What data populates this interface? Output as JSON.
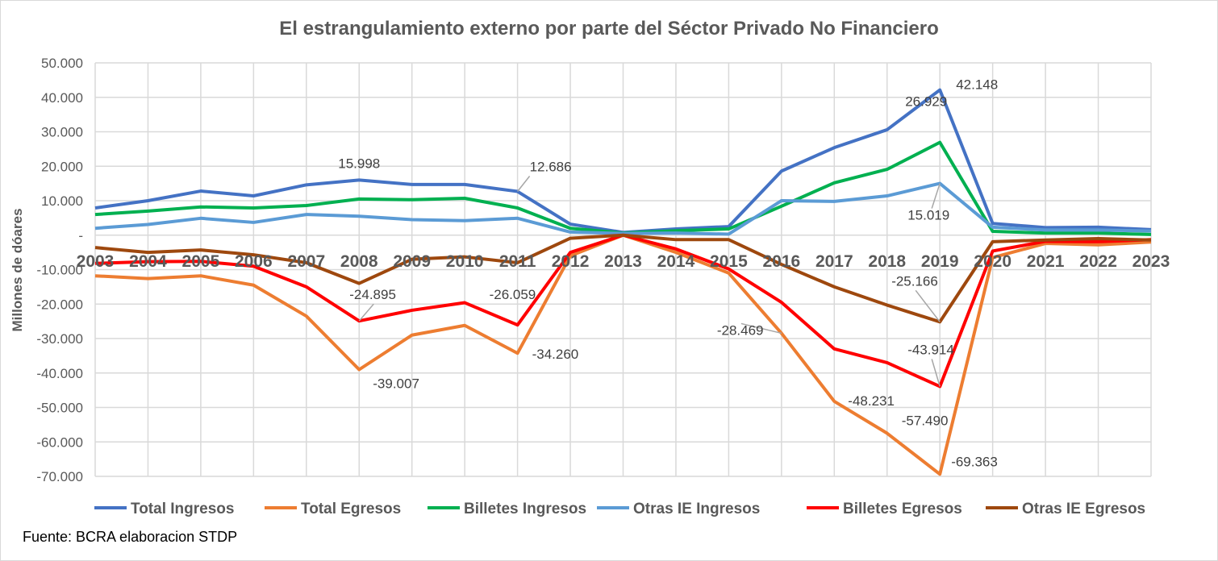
{
  "chart_data": {
    "type": "line",
    "title": "El estrangulamiento externo por parte del Séctor Privado No Financiero",
    "ylabel": "Millones de dóares",
    "xlabel": "",
    "ylim": [
      -70000,
      50000
    ],
    "yticks": [
      50000,
      40000,
      30000,
      20000,
      10000,
      0,
      -10000,
      -20000,
      -30000,
      -40000,
      -50000,
      -60000,
      -70000
    ],
    "ytick_labels": [
      "50.000",
      "40.000",
      "30.000",
      "20.000",
      "10.000",
      "-",
      "-10.000",
      "-20.000",
      "-30.000",
      "-40.000",
      "-50.000",
      "-60.000",
      "-70.000"
    ],
    "grid": true,
    "legend": "bottom",
    "categories": [
      "2003",
      "2004",
      "2005",
      "2006",
      "2007",
      "2008",
      "2009",
      "2010",
      "2011",
      "2012",
      "2013",
      "2014",
      "2015",
      "2016",
      "2017",
      "2018",
      "2019",
      "2020",
      "2021",
      "2022",
      "2023"
    ],
    "series": [
      {
        "name": "Total Ingresos",
        "color": "#4472c4",
        "values": [
          7900,
          10000,
          12800,
          11400,
          14600,
          15998,
          14700,
          14700,
          12686,
          3200,
          800,
          1800,
          2500,
          18600,
          25400,
          30600,
          42148,
          3400,
          2200,
          2300,
          1600
        ]
      },
      {
        "name": "Total Egresos",
        "color": "#ed7d31",
        "values": [
          -11800,
          -12600,
          -11800,
          -14500,
          -23500,
          -39007,
          -29000,
          -26200,
          -34260,
          -6000,
          0,
          -5000,
          -11000,
          -28469,
          -48231,
          -57490,
          -69363,
          -6500,
          -2400,
          -2800,
          -2000
        ]
      },
      {
        "name": "Billetes Ingresos",
        "color": "#00b050",
        "values": [
          6000,
          7000,
          8200,
          7900,
          8600,
          10500,
          10300,
          10700,
          7900,
          2000,
          600,
          1300,
          1800,
          8400,
          15200,
          19100,
          26929,
          1100,
          600,
          600,
          200
        ]
      },
      {
        "name": "Otras IE Ingresos",
        "color": "#5b9bd5",
        "values": [
          2000,
          3100,
          4900,
          3700,
          6000,
          5500,
          4500,
          4200,
          4900,
          900,
          500,
          600,
          300,
          10000,
          9800,
          11400,
          15019,
          2300,
          1500,
          1500,
          1200
        ]
      },
      {
        "name": "Billetes Egresos",
        "color": "#ff0000",
        "values": [
          -8200,
          -7700,
          -7600,
          -9000,
          -15000,
          -24895,
          -21800,
          -19600,
          -26059,
          -5000,
          0,
          -4000,
          -9800,
          -19500,
          -33000,
          -37000,
          -43914,
          -4600,
          -1800,
          -1900,
          -1300
        ]
      },
      {
        "name": "Otras IE Egresos",
        "color": "#9e480e",
        "values": [
          -3600,
          -5000,
          -4300,
          -5700,
          -8000,
          -14000,
          -7000,
          -6300,
          -8000,
          -900,
          0,
          -1300,
          -1300,
          -8500,
          -15000,
          -20300,
          -25166,
          -1900,
          -1400,
          -1000,
          -1400
        ]
      }
    ],
    "data_labels": [
      {
        "series": "Total Ingresos",
        "category": "2008",
        "text": "15.998"
      },
      {
        "series": "Total Ingresos",
        "category": "2011",
        "text": "12.686"
      },
      {
        "series": "Total Ingresos",
        "category": "2019",
        "text": "42.148"
      },
      {
        "series": "Billetes Ingresos",
        "category": "2019",
        "text": "26.929"
      },
      {
        "series": "Otras IE Ingresos",
        "category": "2019",
        "text": "15.019"
      },
      {
        "series": "Billetes Egresos",
        "category": "2008",
        "text": "-24.895"
      },
      {
        "series": "Billetes Egresos",
        "category": "2011",
        "text": "-26.059"
      },
      {
        "series": "Total Egresos",
        "category": "2008",
        "text": "-39.007"
      },
      {
        "series": "Total Egresos",
        "category": "2011",
        "text": "-34.260"
      },
      {
        "series": "Otras IE Egresos",
        "category": "2019",
        "text": "-25.166"
      },
      {
        "series": "Total Egresos",
        "category": "2016",
        "text": "-28.469"
      },
      {
        "series": "Billetes Egresos",
        "category": "2019",
        "text": "-43.914"
      },
      {
        "series": "Total Egresos",
        "category": "2017",
        "text": "-48.231"
      },
      {
        "series": "Total Egresos",
        "category": "2018",
        "text": "-57.490"
      },
      {
        "series": "Total Egresos",
        "category": "2019",
        "text": "-69.363"
      }
    ]
  },
  "source": "Fuente: BCRA elaboracion STDP"
}
